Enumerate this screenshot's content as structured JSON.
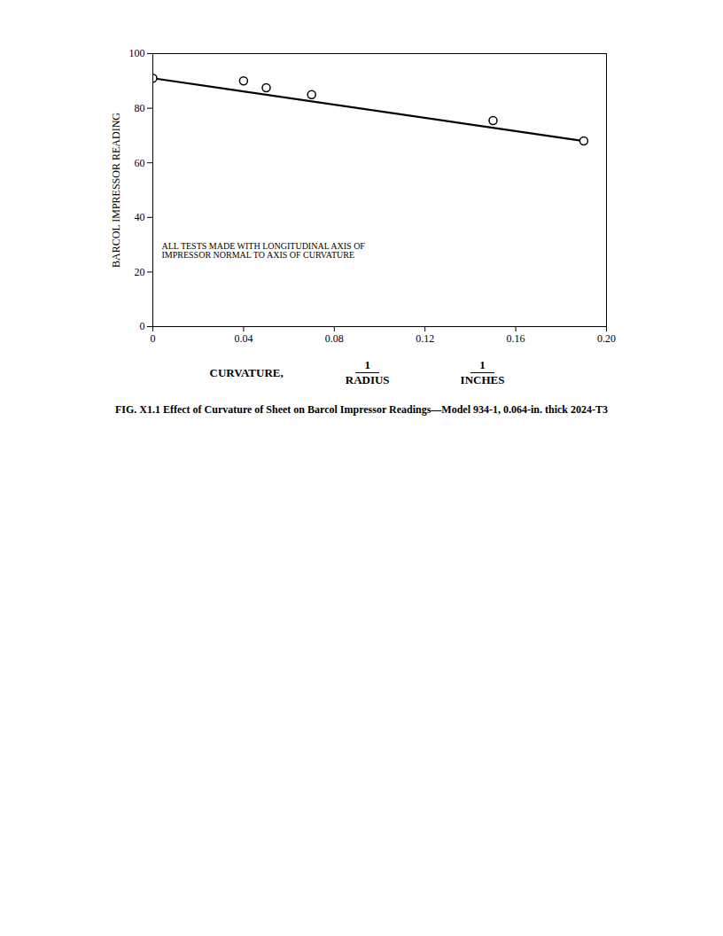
{
  "chart_data": {
    "type": "scatter",
    "title": "FIG. X1.1 Effect of Curvature of Sheet on Barcol Impressor Readings—Model 934-1, 0.064-in. thick 2024-T3",
    "xlabel": "CURVATURE,",
    "xlabel_fractions": [
      {
        "numerator": "1",
        "denominator": "RADIUS"
      },
      {
        "numerator": "1",
        "denominator": "INCHES"
      }
    ],
    "ylabel": "BARCOL IMPRESSOR READING",
    "annotations": [
      "ALL TESTS MADE WITH LONGITUDINAL AXIS OF",
      "IMPRESSOR NORMAL TO AXIS OF CURVATURE"
    ],
    "series": [
      {
        "type": "line",
        "x": [
          0.0,
          0.19
        ],
        "values": [
          91.0,
          68.0
        ],
        "color": "#000000",
        "line_style": "solid"
      },
      {
        "type": "scatter",
        "x": [
          0.0,
          0.04,
          0.05,
          0.07,
          0.15,
          0.19
        ],
        "values": [
          91.0,
          90.0,
          87.5,
          85.0,
          75.5,
          68.0
        ],
        "color": "#000000",
        "marker": "open_circle"
      }
    ],
    "xlim": [
      0,
      0.2
    ],
    "ylim": [
      0,
      100
    ],
    "xticks": [
      0,
      0.04,
      0.08,
      0.12,
      0.16,
      {
        "value": 0.2,
        "label": "0.20"
      }
    ],
    "yticks": [
      0,
      20,
      40,
      60,
      80,
      100
    ],
    "grid": false
  }
}
